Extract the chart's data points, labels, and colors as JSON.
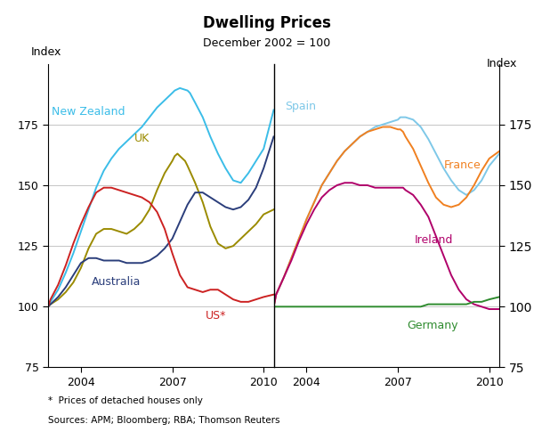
{
  "title": "Dwelling Prices",
  "subtitle": "December 2002 = 100",
  "ylabel": "Index",
  "ylabel_right": "Index",
  "footnote1": "*  Prices of detached houses only",
  "footnote2": "Sources: APM; Bloomberg; RBA; Thomson Reuters",
  "ylim": [
    75,
    200
  ],
  "yticks": [
    75,
    100,
    125,
    150,
    175
  ],
  "left_panel": {
    "xstart": 2002.92,
    "xend": 2010.33,
    "xticks": [
      2004,
      2007,
      2010
    ],
    "series": {
      "New Zealand": {
        "color": "#3BBDE8",
        "data_x": [
          2002.92,
          2003.0,
          2003.25,
          2003.5,
          2003.75,
          2004.0,
          2004.25,
          2004.5,
          2004.75,
          2005.0,
          2005.25,
          2005.5,
          2005.75,
          2006.0,
          2006.25,
          2006.5,
          2006.75,
          2007.0,
          2007.08,
          2007.25,
          2007.5,
          2007.58,
          2007.75,
          2008.0,
          2008.25,
          2008.5,
          2008.75,
          2009.0,
          2009.25,
          2009.5,
          2009.75,
          2010.0,
          2010.33
        ],
        "data_y": [
          100,
          102,
          107,
          114,
          122,
          131,
          140,
          149,
          156,
          161,
          165,
          168,
          171,
          174,
          178,
          182,
          185,
          188,
          189,
          190,
          189,
          188,
          184,
          178,
          170,
          163,
          157,
          152,
          151,
          155,
          160,
          165,
          181
        ]
      },
      "UK": {
        "color": "#9B8B00",
        "data_x": [
          2002.92,
          2003.0,
          2003.25,
          2003.5,
          2003.75,
          2004.0,
          2004.25,
          2004.5,
          2004.75,
          2005.0,
          2005.25,
          2005.5,
          2005.75,
          2006.0,
          2006.25,
          2006.5,
          2006.75,
          2007.0,
          2007.08,
          2007.17,
          2007.25,
          2007.42,
          2007.5,
          2007.75,
          2008.0,
          2008.25,
          2008.5,
          2008.75,
          2009.0,
          2009.25,
          2009.5,
          2009.75,
          2010.0,
          2010.33
        ],
        "data_y": [
          100,
          101,
          103,
          106,
          110,
          116,
          124,
          130,
          132,
          132,
          131,
          130,
          132,
          135,
          140,
          148,
          155,
          160,
          162,
          163,
          162,
          160,
          158,
          151,
          143,
          133,
          126,
          124,
          125,
          128,
          131,
          134,
          138,
          140
        ]
      },
      "Australia": {
        "color": "#2B3E7B",
        "data_x": [
          2002.92,
          2003.0,
          2003.25,
          2003.5,
          2003.75,
          2004.0,
          2004.25,
          2004.5,
          2004.75,
          2005.0,
          2005.25,
          2005.5,
          2005.75,
          2006.0,
          2006.25,
          2006.5,
          2006.75,
          2007.0,
          2007.25,
          2007.5,
          2007.75,
          2008.0,
          2008.25,
          2008.5,
          2008.75,
          2009.0,
          2009.25,
          2009.5,
          2009.75,
          2010.0,
          2010.33
        ],
        "data_y": [
          100,
          101,
          104,
          108,
          113,
          118,
          120,
          120,
          119,
          119,
          119,
          118,
          118,
          118,
          119,
          121,
          124,
          128,
          135,
          142,
          147,
          147,
          145,
          143,
          141,
          140,
          141,
          144,
          149,
          157,
          170
        ]
      },
      "US": {
        "color": "#CC2222",
        "data_x": [
          2002.92,
          2003.0,
          2003.25,
          2003.5,
          2003.75,
          2004.0,
          2004.25,
          2004.5,
          2004.75,
          2005.0,
          2005.25,
          2005.5,
          2005.75,
          2006.0,
          2006.25,
          2006.5,
          2006.75,
          2007.0,
          2007.25,
          2007.5,
          2007.75,
          2008.0,
          2008.25,
          2008.5,
          2008.75,
          2009.0,
          2009.25,
          2009.5,
          2009.75,
          2010.0,
          2010.33
        ],
        "data_y": [
          100,
          103,
          109,
          117,
          126,
          134,
          141,
          147,
          149,
          149,
          148,
          147,
          146,
          145,
          143,
          139,
          132,
          122,
          113,
          108,
          107,
          106,
          107,
          107,
          105,
          103,
          102,
          102,
          103,
          104,
          105
        ]
      }
    }
  },
  "right_panel": {
    "xstart": 2002.92,
    "xend": 2010.33,
    "xticks": [
      2004,
      2007,
      2010
    ],
    "series": {
      "Spain": {
        "color": "#7EC8E8",
        "data_x": [
          2002.92,
          2003.0,
          2003.25,
          2003.5,
          2003.75,
          2004.0,
          2004.25,
          2004.5,
          2004.75,
          2005.0,
          2005.25,
          2005.5,
          2005.75,
          2006.0,
          2006.25,
          2006.5,
          2006.75,
          2007.0,
          2007.08,
          2007.25,
          2007.5,
          2007.75,
          2008.0,
          2008.25,
          2008.5,
          2008.75,
          2009.0,
          2009.25,
          2009.5,
          2009.75,
          2010.0,
          2010.33
        ],
        "data_y": [
          100,
          105,
          112,
          120,
          128,
          136,
          143,
          150,
          155,
          160,
          164,
          167,
          170,
          172,
          174,
          175,
          176,
          177,
          178,
          178,
          177,
          174,
          169,
          163,
          157,
          152,
          148,
          146,
          148,
          152,
          158,
          163
        ]
      },
      "France": {
        "color": "#F08020",
        "data_x": [
          2002.92,
          2003.0,
          2003.25,
          2003.5,
          2003.75,
          2004.0,
          2004.25,
          2004.5,
          2004.75,
          2005.0,
          2005.25,
          2005.5,
          2005.75,
          2006.0,
          2006.25,
          2006.5,
          2006.75,
          2007.0,
          2007.08,
          2007.17,
          2007.25,
          2007.5,
          2007.75,
          2008.0,
          2008.25,
          2008.5,
          2008.75,
          2009.0,
          2009.25,
          2009.5,
          2009.75,
          2010.0,
          2010.33
        ],
        "data_y": [
          100,
          105,
          112,
          120,
          128,
          136,
          143,
          150,
          155,
          160,
          164,
          167,
          170,
          172,
          173,
          174,
          174,
          173,
          173,
          172,
          170,
          165,
          158,
          151,
          145,
          142,
          141,
          142,
          145,
          150,
          156,
          161,
          164
        ]
      },
      "Ireland": {
        "color": "#B0006A",
        "data_x": [
          2002.92,
          2003.0,
          2003.25,
          2003.5,
          2003.75,
          2004.0,
          2004.25,
          2004.5,
          2004.75,
          2005.0,
          2005.25,
          2005.5,
          2005.75,
          2006.0,
          2006.25,
          2006.5,
          2006.75,
          2007.0,
          2007.08,
          2007.17,
          2007.25,
          2007.5,
          2007.75,
          2008.0,
          2008.25,
          2008.5,
          2008.75,
          2009.0,
          2009.25,
          2009.5,
          2009.75,
          2010.0,
          2010.33
        ],
        "data_y": [
          100,
          105,
          112,
          119,
          127,
          134,
          140,
          145,
          148,
          150,
          151,
          151,
          150,
          150,
          149,
          149,
          149,
          149,
          149,
          149,
          148,
          146,
          142,
          137,
          129,
          121,
          113,
          107,
          103,
          101,
          100,
          99,
          99
        ]
      },
      "Germany": {
        "color": "#2E8B2E",
        "data_x": [
          2002.92,
          2003.0,
          2003.25,
          2003.5,
          2003.75,
          2004.0,
          2004.25,
          2004.5,
          2004.75,
          2005.0,
          2005.25,
          2005.5,
          2005.75,
          2006.0,
          2006.25,
          2006.5,
          2006.75,
          2007.0,
          2007.25,
          2007.5,
          2007.75,
          2008.0,
          2008.25,
          2008.5,
          2008.75,
          2009.0,
          2009.25,
          2009.5,
          2009.75,
          2010.0,
          2010.33
        ],
        "data_y": [
          100,
          100,
          100,
          100,
          100,
          100,
          100,
          100,
          100,
          100,
          100,
          100,
          100,
          100,
          100,
          100,
          100,
          100,
          100,
          100,
          100,
          101,
          101,
          101,
          101,
          101,
          101,
          102,
          102,
          103,
          104
        ]
      }
    }
  },
  "label_fontsize": 9
}
